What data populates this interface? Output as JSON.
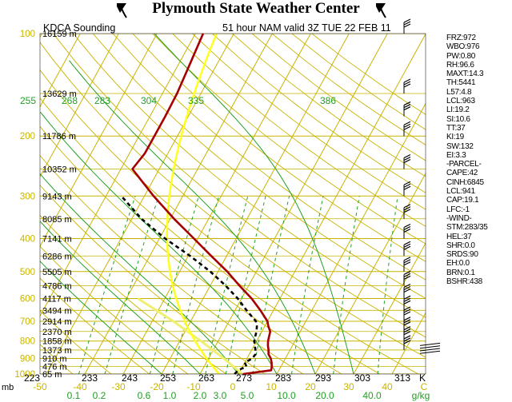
{
  "header": {
    "title": "Plymouth State Weather Center"
  },
  "chart_data": {
    "type": "line",
    "station_label": "KDCA Sounding",
    "run_label": "51 hour NAM valid 3Z TUE 22 FEB 11",
    "pressure_levels": [
      "100",
      "200",
      "300",
      "400",
      "500",
      "600",
      "700",
      "800",
      "900",
      "1000"
    ],
    "pressure_axis_unit": "mb",
    "height_labels": [
      {
        "p": 100,
        "text": "16159 m"
      },
      {
        "p": 150,
        "text": "13629 m"
      },
      {
        "p": 200,
        "text": "11786 m"
      },
      {
        "p": 250,
        "text": "10352 m"
      },
      {
        "p": 300,
        "text": "9143 m"
      },
      {
        "p": 350,
        "text": "8085 m"
      },
      {
        "p": 400,
        "text": "7141 m"
      },
      {
        "p": 450,
        "text": "6286 m"
      },
      {
        "p": 500,
        "text": "5505 m"
      },
      {
        "p": 550,
        "text": "4786 m"
      },
      {
        "p": 600,
        "text": "4117 m"
      },
      {
        "p": 650,
        "text": "3494 m"
      },
      {
        "p": 700,
        "text": "2914 m"
      },
      {
        "p": 750,
        "text": "2370 m"
      },
      {
        "p": 800,
        "text": "1858 m"
      },
      {
        "p": 850,
        "text": "1373 m"
      },
      {
        "p": 900,
        "text": "910 m"
      },
      {
        "p": 950,
        "text": "476 m"
      },
      {
        "p": 1000,
        "text": "65 m"
      }
    ],
    "temperature_ticks_c": [
      "-50",
      "-40",
      "-30",
      "-20",
      "-10",
      "0",
      "10",
      "20",
      "30",
      "40",
      "C"
    ],
    "kelvin_ticks": [
      "223",
      "233",
      "243",
      "253",
      "263",
      "273",
      "283",
      "293",
      "303",
      "313",
      "K"
    ],
    "mixing_ratio_ticks": [
      "0.1",
      "0.2",
      "0.6",
      "1.0",
      "2.0",
      "3.0",
      "5.0",
      "10.0",
      "20.0",
      "40.0",
      "g/kg"
    ],
    "theta_labels": [
      "255",
      "268",
      "283",
      "304",
      "335",
      "386"
    ],
    "temperature_profile": {
      "p": [
        1000,
        975,
        950,
        925,
        900,
        875,
        850,
        825,
        800,
        775,
        750,
        725,
        700,
        650,
        600,
        550,
        500,
        450,
        400,
        350,
        300,
        250,
        225,
        200,
        175,
        150,
        125,
        100
      ],
      "t": [
        1.2,
        8.0,
        7.6,
        7.0,
        6.2,
        5.0,
        4.4,
        3.6,
        3.0,
        2.6,
        2.2,
        1.0,
        0.0,
        -3.4,
        -7.4,
        -12.4,
        -17.6,
        -24.0,
        -31.0,
        -39.0,
        -47.6,
        -57.0,
        -56.0,
        -56.0,
        -56.0,
        -56.2,
        -57.0,
        -58.0
      ]
    },
    "dewpoint_profile": {
      "p": [
        1000,
        975,
        950,
        925,
        900,
        875,
        850,
        825,
        800,
        775,
        750,
        725,
        700,
        650,
        600,
        550,
        500,
        450,
        400,
        350,
        300
      ],
      "td": [
        -1.0,
        -0.6,
        1.0,
        0.0,
        1.4,
        1.6,
        1.0,
        0.2,
        -0.6,
        -1.0,
        -1.4,
        -2.0,
        -3.0,
        -7.0,
        -11.0,
        -16.0,
        -22.0,
        -29.5,
        -38.5,
        -47.5,
        -56.0
      ]
    },
    "parcel_profile": {
      "p": [
        1000,
        900,
        800,
        700,
        600
      ],
      "t": [
        1.0,
        -6.0,
        -14.5,
        -24.5,
        -37.0
      ]
    },
    "indices": [
      "FRZ:972",
      "WBO:976",
      "PW:0.80",
      "RH:96.6",
      "MAXT:14.3",
      "TH:5441",
      "L57:4.8",
      "LCL:963",
      "LI:19.2",
      "SI:10.6",
      "TT:37",
      "KI:19",
      "SW:132",
      "EI:3.3",
      "-PARCEL-",
      "CAPE:42",
      "CINH:6845",
      "LCL:941",
      "CAP:19.1",
      "LFC:-1",
      "-WIND-",
      "STM:283/35",
      "HEL:37",
      "SHR:0.0",
      "SRDS:90",
      "EH:0.0",
      "BRN:0.1",
      "BSHR:438"
    ],
    "colors": {
      "isotherm": "#c9b400",
      "isobar": "#c9b400",
      "dry_adiabat": "#c9b400",
      "moist_adiabat": "#22a022",
      "mixing_ratio": "#22a022",
      "freezing_line": "#ffff20",
      "temperature": "#a50000",
      "dewpoint": "#000000",
      "parcel": "#f0f070"
    }
  }
}
